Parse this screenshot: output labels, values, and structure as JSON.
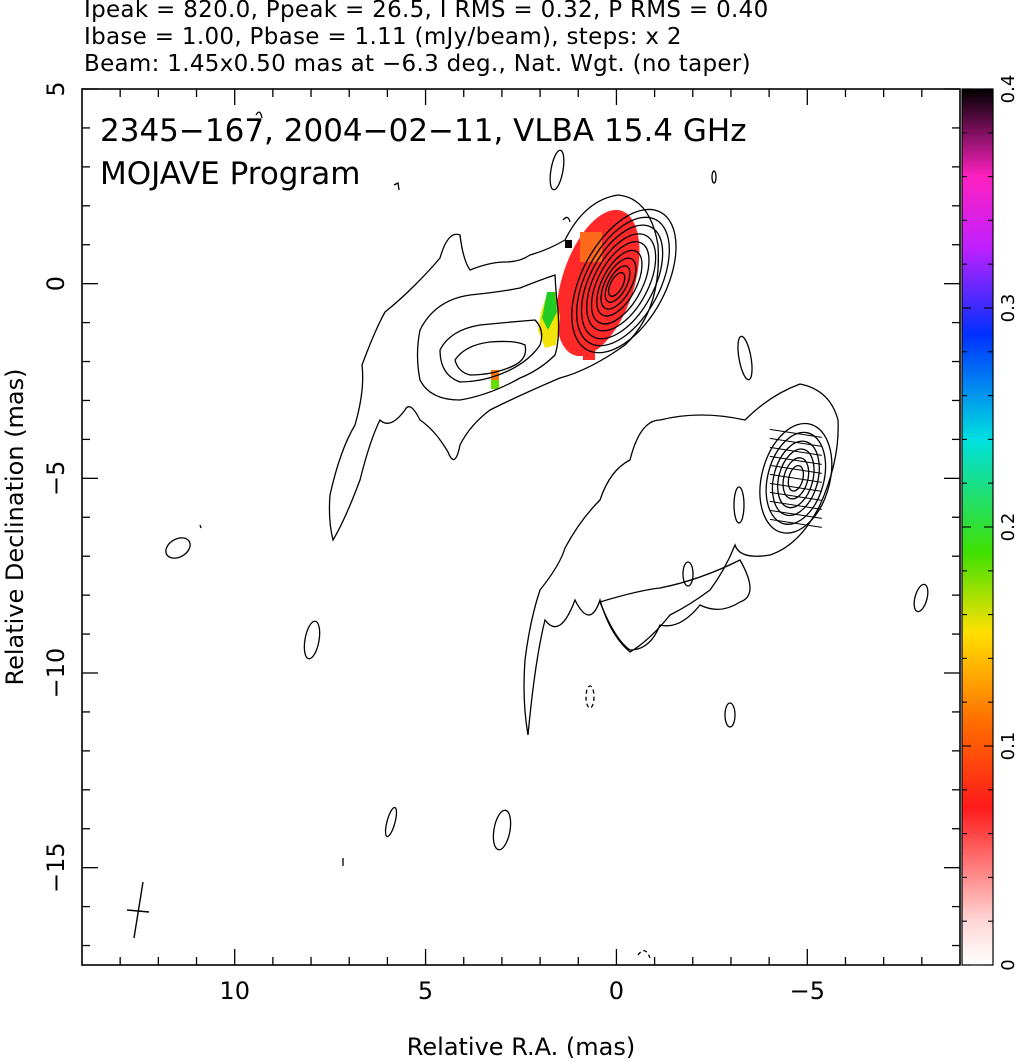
{
  "header": {
    "line1": "Ipeak = 820.0, Ppeak = 26.5, I RMS = 0.32, P RMS = 0.40",
    "line2": "Ibase = 1.00, Pbase = 1.11 (mJy/beam), steps: x 2",
    "line3": "Beam: 1.45x0.50 mas at −6.3 deg., Nat. Wgt. (no taper)"
  },
  "panel": {
    "title": "2345−167, 2004−02−11, VLBA 15.4 GHz",
    "subtitle": "MOJAVE Program"
  },
  "chart_data": {
    "type": "heatmap",
    "description_of_content": "VLBA contour map of total intensity with fractional polarization color overlay",
    "xlabel": "Relative R.A. (mas)",
    "ylabel": "Relative Declination (mas)",
    "xlim": [
      14,
      -9
    ],
    "ylim": [
      -17.5,
      5
    ],
    "x_ticks": [
      10,
      5,
      0,
      -5
    ],
    "x_tick_labels": [
      "10",
      "5",
      "0",
      "−5"
    ],
    "y_ticks": [
      5,
      0,
      -5,
      -10,
      -15
    ],
    "y_tick_labels": [
      "5",
      "0",
      "−5",
      "−10",
      "−15"
    ],
    "colorbar": {
      "range": [
        0,
        0.4
      ],
      "ticks": [
        0,
        0.1,
        0.2,
        0.3,
        0.4
      ],
      "tick_labels": [
        "0",
        "0.1",
        "0.2",
        "0.3",
        "0.4"
      ]
    },
    "core": {
      "x": -0.1,
      "y": 0.0
    },
    "secondary_component": {
      "x": -4.7,
      "y": -5.0
    },
    "beam": {
      "major_mas": 1.45,
      "minor_mas": 0.5,
      "pa_deg": -6.3,
      "x": 12.5,
      "y": -16.3
    }
  }
}
